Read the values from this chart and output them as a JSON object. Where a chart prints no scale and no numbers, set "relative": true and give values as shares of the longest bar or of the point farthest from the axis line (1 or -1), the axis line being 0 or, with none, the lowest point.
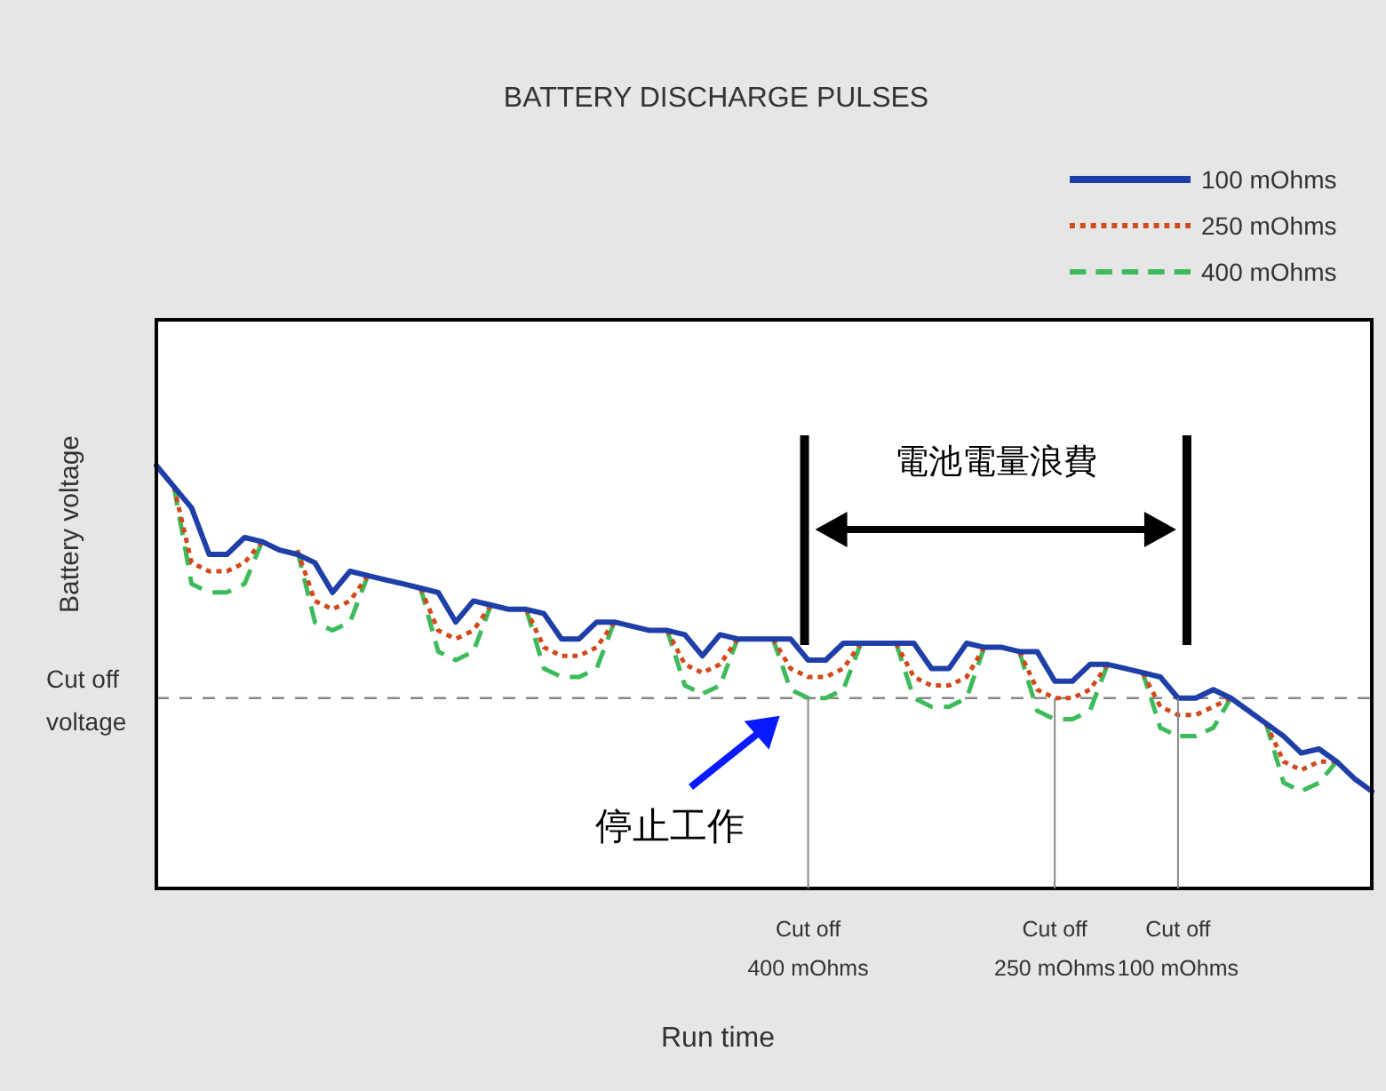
{
  "chart_data": {
    "type": "line",
    "relative": true,
    "title": "BATTERY DISCHARGE PULSES",
    "xlabel": "Run time",
    "ylabel": "Battery voltage",
    "legend": "top right",
    "categories": [
      null,
      null,
      null,
      null,
      null,
      null,
      null,
      null,
      null,
      null,
      null,
      null,
      null,
      null,
      null,
      null,
      null,
      null,
      null,
      null,
      null,
      null,
      null,
      null,
      null,
      null,
      null,
      null,
      null,
      null,
      null,
      null,
      null,
      null,
      null,
      null,
      null,
      null,
      null,
      null,
      null,
      null,
      null,
      null,
      null,
      null,
      null,
      null,
      null,
      null,
      null,
      null,
      null,
      null,
      null,
      null,
      null,
      null,
      null,
      null,
      null,
      null,
      null,
      null,
      null,
      null,
      null,
      null,
      null,
      null
    ],
    "series": [
      {
        "name": "100 mOhms",
        "color": "#1f3fa8",
        "line_style": "solid",
        "values": [
          1.0,
          0.95,
          0.9,
          0.79,
          0.79,
          0.83,
          0.82,
          0.8,
          0.79,
          0.77,
          0.7,
          0.75,
          0.74,
          0.73,
          0.72,
          0.71,
          0.7,
          0.63,
          0.68,
          0.67,
          0.66,
          0.66,
          0.65,
          0.59,
          0.59,
          0.63,
          0.63,
          0.62,
          0.61,
          0.61,
          0.6,
          0.55,
          0.6,
          0.59,
          0.59,
          0.59,
          0.59,
          0.54,
          0.54,
          0.58,
          0.58,
          0.58,
          0.58,
          0.58,
          0.52,
          0.52,
          0.58,
          0.57,
          0.57,
          0.56,
          0.56,
          0.49,
          0.49,
          0.53,
          0.53,
          0.52,
          0.51,
          0.5,
          0.45,
          0.45,
          0.47,
          0.45,
          0.42,
          0.39,
          0.36,
          0.32,
          0.33,
          0.3,
          0.26,
          0.23
        ]
      },
      {
        "name": "250 mOhms",
        "color": "#d2491c",
        "line_style": "dotted",
        "values": [
          null,
          0.95,
          0.77,
          0.75,
          0.75,
          0.77,
          0.82,
          null,
          0.8,
          0.68,
          0.66,
          0.68,
          0.74,
          null,
          null,
          0.71,
          0.61,
          0.59,
          0.61,
          0.67,
          null,
          0.66,
          0.57,
          0.55,
          0.55,
          0.57,
          0.63,
          null,
          null,
          0.61,
          0.53,
          0.51,
          0.53,
          0.59,
          null,
          0.59,
          0.52,
          0.5,
          0.5,
          0.52,
          0.58,
          null,
          0.58,
          0.5,
          0.48,
          0.48,
          0.5,
          0.57,
          null,
          0.56,
          0.47,
          0.45,
          0.45,
          0.47,
          0.53,
          null,
          0.51,
          0.43,
          0.41,
          0.41,
          0.43,
          0.45,
          null,
          0.39,
          0.3,
          0.28,
          0.3,
          0.3,
          null,
          null
        ]
      },
      {
        "name": "400 mOhms",
        "color": "#3dbb5a",
        "line_style": "dashed",
        "values": [
          null,
          0.95,
          0.72,
          0.7,
          0.7,
          0.72,
          0.82,
          null,
          0.8,
          0.63,
          0.61,
          0.63,
          0.74,
          null,
          null,
          0.71,
          0.56,
          0.54,
          0.56,
          0.67,
          null,
          0.66,
          0.52,
          0.5,
          0.5,
          0.52,
          0.63,
          null,
          null,
          0.61,
          0.48,
          0.46,
          0.48,
          0.59,
          null,
          0.59,
          0.47,
          0.45,
          0.45,
          0.47,
          0.58,
          null,
          0.58,
          0.45,
          0.43,
          0.43,
          0.45,
          0.57,
          null,
          0.56,
          0.42,
          0.4,
          0.4,
          0.42,
          0.53,
          null,
          0.51,
          0.38,
          0.36,
          0.36,
          0.38,
          0.45,
          null,
          0.39,
          0.25,
          0.23,
          0.25,
          0.3,
          null,
          null
        ]
      }
    ],
    "ref_lines": [
      {
        "axis": "y",
        "value": 0.45,
        "label": "Cut off voltage",
        "color": "#888888",
        "line_style": "dashed"
      }
    ],
    "annotations": [
      "Cut off 400 mOhms",
      "Cut off 250 mOhms",
      "Cut off 100 mOhms",
      "電池電量浪費",
      "停止工作"
    ]
  }
}
